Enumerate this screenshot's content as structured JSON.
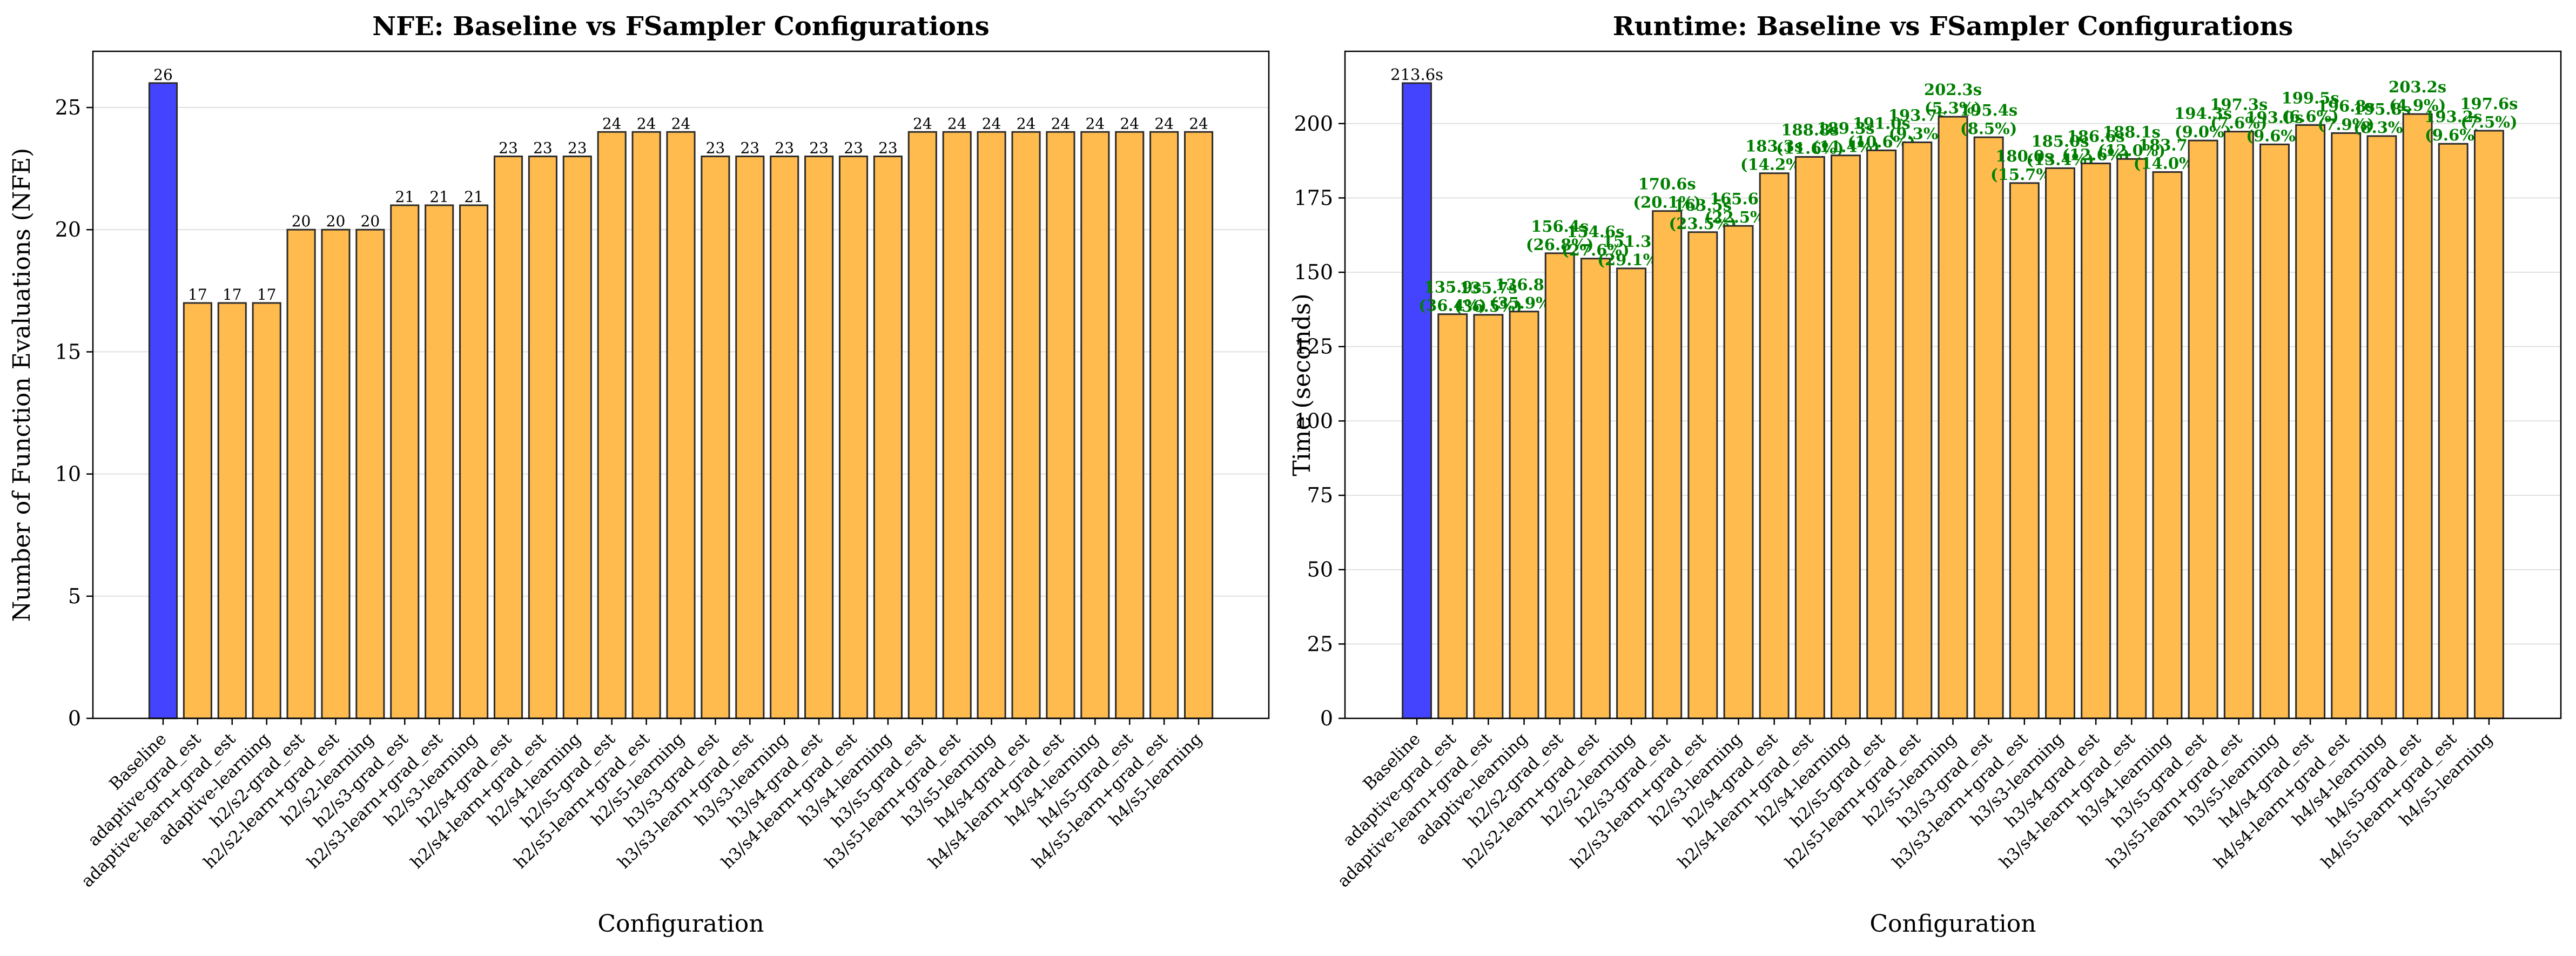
{
  "colors": {
    "baseline": "#4444ff",
    "fsampler": "#ffbb4d",
    "edge": "#2b2b2b",
    "savings": "#008000"
  },
  "chart_data": [
    {
      "type": "bar",
      "title": "NFE: Baseline vs FSampler Configurations",
      "xlabel": "Configuration",
      "ylabel": "Number of Function Evaluations (NFE)",
      "ylim": [
        0,
        27.3
      ],
      "yticks": [
        0,
        5,
        10,
        15,
        20,
        25
      ],
      "grid": "y",
      "categories": [
        "Baseline",
        "adaptive-grad_est",
        "adaptive-learn+grad_est",
        "adaptive-learning",
        "h2/s2-grad_est",
        "h2/s2-learn+grad_est",
        "h2/s2-learning",
        "h2/s3-grad_est",
        "h2/s3-learn+grad_est",
        "h2/s3-learning",
        "h2/s4-grad_est",
        "h2/s4-learn+grad_est",
        "h2/s4-learning",
        "h2/s5-grad_est",
        "h2/s5-learn+grad_est",
        "h2/s5-learning",
        "h3/s3-grad_est",
        "h3/s3-learn+grad_est",
        "h3/s3-learning",
        "h3/s4-grad_est",
        "h3/s4-learn+grad_est",
        "h3/s4-learning",
        "h3/s5-grad_est",
        "h3/s5-learn+grad_est",
        "h3/s5-learning",
        "h4/s4-grad_est",
        "h4/s4-learn+grad_est",
        "h4/s4-learning",
        "h4/s5-grad_est",
        "h4/s5-learn+grad_est",
        "h4/s5-learning"
      ],
      "values": [
        26,
        17,
        17,
        17,
        20,
        20,
        20,
        21,
        21,
        21,
        23,
        23,
        23,
        24,
        24,
        24,
        23,
        23,
        23,
        23,
        23,
        23,
        24,
        24,
        24,
        24,
        24,
        24,
        24,
        24,
        24
      ],
      "labels": [
        "26",
        "17",
        "17",
        "17",
        "20",
        "20",
        "20",
        "21",
        "21",
        "21",
        "23",
        "23",
        "23",
        "24",
        "24",
        "24",
        "23",
        "23",
        "23",
        "23",
        "23",
        "23",
        "24",
        "24",
        "24",
        "24",
        "24",
        "24",
        "24",
        "24",
        "24"
      ]
    },
    {
      "type": "bar",
      "title": "Runtime: Baseline vs FSampler Configurations",
      "xlabel": "Configuration",
      "ylabel": "Time (seconds)",
      "ylim": [
        0,
        224.3
      ],
      "yticks": [
        0,
        25,
        50,
        75,
        100,
        125,
        150,
        175,
        200
      ],
      "grid": "y",
      "categories": [
        "Baseline",
        "adaptive-grad_est",
        "adaptive-learn+grad_est",
        "adaptive-learning",
        "h2/s2-grad_est",
        "h2/s2-learn+grad_est",
        "h2/s2-learning",
        "h2/s3-grad_est",
        "h2/s3-learn+grad_est",
        "h2/s3-learning",
        "h2/s4-grad_est",
        "h2/s4-learn+grad_est",
        "h2/s4-learning",
        "h2/s5-grad_est",
        "h2/s5-learn+grad_est",
        "h2/s5-learning",
        "h3/s3-grad_est",
        "h3/s3-learn+grad_est",
        "h3/s3-learning",
        "h3/s4-grad_est",
        "h3/s4-learn+grad_est",
        "h3/s4-learning",
        "h3/s5-grad_est",
        "h3/s5-learn+grad_est",
        "h3/s5-learning",
        "h4/s4-grad_est",
        "h4/s4-learn+grad_est",
        "h4/s4-learning",
        "h4/s5-grad_est",
        "h4/s5-learn+grad_est",
        "h4/s5-learning"
      ],
      "values": [
        213.6,
        135.9,
        135.7,
        136.8,
        156.4,
        154.6,
        151.3,
        170.6,
        163.5,
        165.6,
        183.3,
        188.8,
        189.3,
        191.0,
        193.7,
        202.3,
        195.4,
        180.0,
        185.0,
        186.6,
        188.1,
        183.7,
        194.3,
        197.3,
        193.0,
        199.5,
        196.8,
        195.8,
        203.2,
        193.2,
        197.6
      ],
      "labels": [
        "213.6s",
        "135.9s",
        "135.7s",
        "136.8s",
        "156.4s",
        "154.6s",
        "151.3s",
        "170.6s",
        "163.5s",
        "165.6s",
        "183.3s",
        "188.8s",
        "189.3s",
        "191.0s",
        "193.7s",
        "202.3s",
        "195.4s",
        "180.0s",
        "185.0s",
        "186.6s",
        "188.1s",
        "183.7s",
        "194.3s",
        "197.3s",
        "193.0s",
        "199.5s",
        "196.8s",
        "195.8s",
        "203.2s",
        "193.2s",
        "197.6s"
      ],
      "savings": [
        "",
        "(36.4%)",
        "(36.5%)",
        "(35.9%)",
        "(26.8%)",
        "(27.6%)",
        "(29.1%)",
        "(20.1%)",
        "(23.5%)",
        "(22.5%)",
        "(14.2%)",
        "(11.6%)",
        "(11.4%)",
        "(10.6%)",
        "(9.3%)",
        "(5.3%)",
        "(8.5%)",
        "(15.7%)",
        "(13.4%)",
        "(12.6%)",
        "(12.0%)",
        "(14.0%)",
        "(9.0%)",
        "(7.6%)",
        "(9.6%)",
        "(6.6%)",
        "(7.9%)",
        "(8.3%)",
        "(4.9%)",
        "(9.6%)",
        "(7.5%)"
      ]
    }
  ]
}
